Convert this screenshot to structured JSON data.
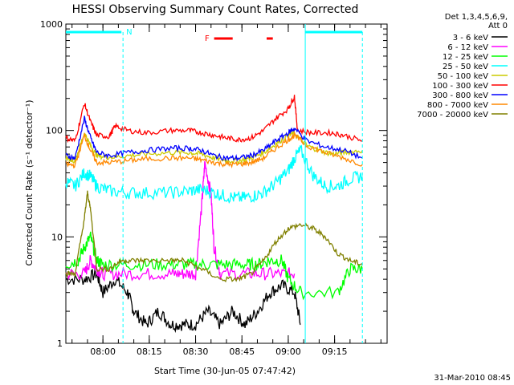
{
  "chart_data": {
    "type": "line",
    "title": "HESSI Observing Summary Count Rates, Corrected",
    "xlabel": "Start Time (30-Jun-05 07:47:42)",
    "ylabel": "Corrected Count Rate (s⁻¹ detector⁻¹)",
    "y_scale": "log",
    "ylim": [
      1,
      1000
    ],
    "xlim_min": [
      0,
      104
    ],
    "x_ticks": [
      {
        "t": 12,
        "label": "08:00"
      },
      {
        "t": 27,
        "label": "08:15"
      },
      {
        "t": 42,
        "label": "08:30"
      },
      {
        "t": 57,
        "label": "08:45"
      },
      {
        "t": 72,
        "label": "09:00"
      },
      {
        "t": 87,
        "label": "09:15"
      }
    ],
    "y_ticks": [
      {
        "v": 1,
        "label": "1"
      },
      {
        "v": 10,
        "label": "10"
      },
      {
        "v": 100,
        "label": "100"
      },
      {
        "v": 1000,
        "label": "1000"
      }
    ],
    "legend_header": [
      "Det 1,3,4,5,6,9,",
      "Att 0"
    ],
    "legend_position": "right",
    "series": [
      {
        "name": "3 - 6 keV",
        "color": "#000000",
        "points": [
          [
            0,
            4
          ],
          [
            6,
            4
          ],
          [
            10,
            4.5
          ],
          [
            12,
            3
          ],
          [
            16,
            4
          ],
          [
            20,
            3
          ],
          [
            22,
            2
          ],
          [
            26,
            1.5
          ],
          [
            30,
            2
          ],
          [
            34,
            1.5
          ],
          [
            38,
            1.5
          ],
          [
            42,
            1.5
          ],
          [
            46,
            2
          ],
          [
            50,
            1.5
          ],
          [
            54,
            2
          ],
          [
            58,
            1.5
          ],
          [
            62,
            2
          ],
          [
            66,
            3
          ],
          [
            70,
            3.5
          ],
          [
            74,
            3
          ],
          [
            76,
            1.5
          ]
        ]
      },
      {
        "name": "6 - 12 keV",
        "color": "#ff00ff",
        "points": [
          [
            0,
            4.5
          ],
          [
            6,
            4.5
          ],
          [
            8,
            6
          ],
          [
            10,
            5
          ],
          [
            12,
            4.5
          ],
          [
            18,
            4.5
          ],
          [
            26,
            4.5
          ],
          [
            34,
            4.5
          ],
          [
            38,
            4.5
          ],
          [
            42,
            4.5
          ],
          [
            44,
            20
          ],
          [
            45,
            50
          ],
          [
            47,
            25
          ],
          [
            48,
            8
          ],
          [
            50,
            4.5
          ],
          [
            58,
            4.5
          ],
          [
            64,
            4.5
          ],
          [
            70,
            4.5
          ],
          [
            74,
            4.5
          ]
        ]
      },
      {
        "name": "12 - 25 keV",
        "color": "#00ff00",
        "points": [
          [
            0,
            5.5
          ],
          [
            4,
            6
          ],
          [
            6,
            8
          ],
          [
            8,
            10
          ],
          [
            10,
            6
          ],
          [
            12,
            5.5
          ],
          [
            18,
            5.5
          ],
          [
            26,
            5.5
          ],
          [
            34,
            5.5
          ],
          [
            40,
            5.5
          ],
          [
            46,
            5.5
          ],
          [
            52,
            5.5
          ],
          [
            58,
            5.5
          ],
          [
            62,
            5.5
          ],
          [
            66,
            6
          ],
          [
            70,
            6
          ],
          [
            72,
            4
          ],
          [
            76,
            3
          ],
          [
            88,
            3
          ],
          [
            92,
            5
          ],
          [
            96,
            5
          ]
        ]
      },
      {
        "name": "25 - 50 keV",
        "color": "#00ffff",
        "points": [
          [
            0,
            33
          ],
          [
            3,
            30
          ],
          [
            6,
            40
          ],
          [
            8,
            37
          ],
          [
            10,
            30
          ],
          [
            14,
            27
          ],
          [
            20,
            26
          ],
          [
            26,
            26
          ],
          [
            34,
            26
          ],
          [
            40,
            27
          ],
          [
            44,
            28
          ],
          [
            48,
            26
          ],
          [
            52,
            24
          ],
          [
            56,
            23
          ],
          [
            60,
            24
          ],
          [
            64,
            26
          ],
          [
            68,
            32
          ],
          [
            72,
            42
          ],
          [
            74,
            55
          ],
          [
            76,
            65
          ],
          [
            80,
            38
          ],
          [
            84,
            30
          ],
          [
            88,
            30
          ],
          [
            92,
            35
          ],
          [
            96,
            37
          ]
        ]
      },
      {
        "name": "50 - 100 keV",
        "color": "#cccc00",
        "points": [
          [
            0,
            55
          ],
          [
            3,
            52
          ],
          [
            6,
            95
          ],
          [
            8,
            72
          ],
          [
            10,
            58
          ],
          [
            14,
            56
          ],
          [
            20,
            58
          ],
          [
            26,
            60
          ],
          [
            34,
            62
          ],
          [
            40,
            62
          ],
          [
            44,
            60
          ],
          [
            48,
            55
          ],
          [
            52,
            52
          ],
          [
            56,
            52
          ],
          [
            60,
            55
          ],
          [
            64,
            62
          ],
          [
            68,
            75
          ],
          [
            72,
            90
          ],
          [
            74,
            95
          ],
          [
            78,
            72
          ],
          [
            82,
            65
          ],
          [
            86,
            60
          ],
          [
            90,
            62
          ],
          [
            96,
            65
          ]
        ]
      },
      {
        "name": "100 - 300 keV",
        "color": "#ff0000",
        "points": [
          [
            0,
            85
          ],
          [
            3,
            80
          ],
          [
            6,
            180
          ],
          [
            8,
            120
          ],
          [
            10,
            90
          ],
          [
            14,
            88
          ],
          [
            16,
            110
          ],
          [
            20,
            100
          ],
          [
            26,
            95
          ],
          [
            34,
            100
          ],
          [
            40,
            100
          ],
          [
            44,
            95
          ],
          [
            48,
            90
          ],
          [
            52,
            85
          ],
          [
            56,
            82
          ],
          [
            60,
            85
          ],
          [
            64,
            100
          ],
          [
            68,
            130
          ],
          [
            72,
            160
          ],
          [
            74,
            210
          ],
          [
            75,
            100
          ],
          [
            80,
            95
          ],
          [
            86,
            95
          ],
          [
            90,
            90
          ],
          [
            96,
            80
          ]
        ]
      },
      {
        "name": "300 - 800 keV",
        "color": "#0000ff",
        "points": [
          [
            0,
            58
          ],
          [
            3,
            55
          ],
          [
            6,
            130
          ],
          [
            8,
            85
          ],
          [
            10,
            62
          ],
          [
            14,
            58
          ],
          [
            20,
            62
          ],
          [
            26,
            65
          ],
          [
            34,
            68
          ],
          [
            40,
            68
          ],
          [
            44,
            65
          ],
          [
            48,
            58
          ],
          [
            52,
            55
          ],
          [
            56,
            55
          ],
          [
            60,
            58
          ],
          [
            64,
            65
          ],
          [
            68,
            80
          ],
          [
            72,
            95
          ],
          [
            74,
            105
          ],
          [
            78,
            80
          ],
          [
            84,
            70
          ],
          [
            90,
            65
          ],
          [
            96,
            55
          ]
        ]
      },
      {
        "name": "800 - 7000 keV",
        "color": "#ff8800",
        "points": [
          [
            0,
            48
          ],
          [
            3,
            47
          ],
          [
            6,
            90
          ],
          [
            8,
            65
          ],
          [
            10,
            50
          ],
          [
            14,
            50
          ],
          [
            20,
            52
          ],
          [
            26,
            54
          ],
          [
            34,
            55
          ],
          [
            40,
            55
          ],
          [
            44,
            53
          ],
          [
            48,
            50
          ],
          [
            52,
            48
          ],
          [
            56,
            48
          ],
          [
            60,
            50
          ],
          [
            64,
            55
          ],
          [
            68,
            68
          ],
          [
            72,
            82
          ],
          [
            74,
            90
          ],
          [
            78,
            72
          ],
          [
            84,
            62
          ],
          [
            90,
            55
          ],
          [
            96,
            48
          ]
        ]
      },
      {
        "name": "7000 - 20000 keV",
        "color": "#808000",
        "points": [
          [
            0,
            4.5
          ],
          [
            3,
            4.5
          ],
          [
            6,
            15
          ],
          [
            7,
            26
          ],
          [
            8,
            18
          ],
          [
            10,
            5
          ],
          [
            14,
            5
          ],
          [
            18,
            6
          ],
          [
            22,
            6
          ],
          [
            26,
            6
          ],
          [
            34,
            6
          ],
          [
            38,
            6
          ],
          [
            44,
            5
          ],
          [
            50,
            4
          ],
          [
            56,
            4
          ],
          [
            60,
            4.5
          ],
          [
            64,
            6
          ],
          [
            68,
            9
          ],
          [
            72,
            12
          ],
          [
            76,
            13
          ],
          [
            80,
            12
          ],
          [
            84,
            10
          ],
          [
            88,
            7
          ],
          [
            92,
            6
          ],
          [
            96,
            5.5
          ]
        ]
      }
    ],
    "annotations": {
      "night_bar_label": "N",
      "flare_label": "F",
      "footer_date": "31-Mar-2010 08:45"
    }
  }
}
